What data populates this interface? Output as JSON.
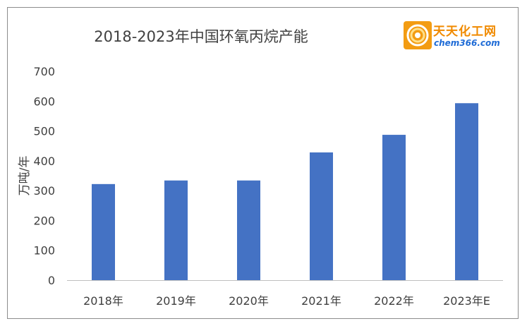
{
  "chart_data": {
    "type": "bar",
    "title": "2018-2023年中国环氧丙烷产能",
    "ylabel": "万吨/年",
    "xlabel": "",
    "categories": [
      "2018年",
      "2019年",
      "2020年",
      "2021年",
      "2022年",
      "2023年E"
    ],
    "values": [
      322,
      334,
      334,
      428,
      487,
      593
    ],
    "ylim": [
      0,
      700
    ],
    "yticks": [
      0,
      100,
      200,
      300,
      400,
      500,
      600,
      700
    ],
    "bar_color": "#4472c4",
    "grid": false,
    "legend": "none"
  },
  "logo": {
    "name": "天天化工网",
    "url": "chem366.com",
    "mark_color": "#f39c12"
  }
}
